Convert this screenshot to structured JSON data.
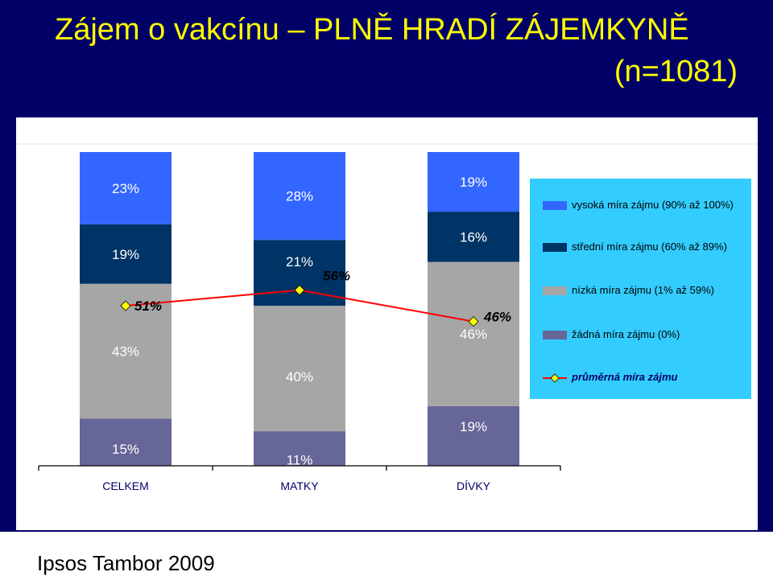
{
  "title": {
    "line1": "Zájem o vakcínu – PLNĚ HRADÍ ZÁJEMKYNĚ",
    "line2": "(n=1081)"
  },
  "footer": {
    "source": "Ipsos Tambor 2009"
  },
  "colors": {
    "vysoka": "#3366FF",
    "stredni": "#003366",
    "nizka": "#A6A6A6",
    "zadna": "#666699",
    "line": "#FF0000",
    "marker": "#FFFF00"
  },
  "chart_data": {
    "type": "bar",
    "stacked": true,
    "categories": [
      "CELKEM",
      "MATKY",
      "DÍVKY"
    ],
    "series": [
      {
        "name": "žádná míra zájmu (0%)",
        "values": [
          15,
          11,
          19
        ],
        "labels": [
          "15%",
          "11%",
          "19%"
        ]
      },
      {
        "name": "nízká míra zájmu (1% až 59%)",
        "values": [
          43,
          40,
          46
        ],
        "labels": [
          "43%",
          "40%",
          "46%"
        ]
      },
      {
        "name": "střední míra zájmu (60% až 89%)",
        "values": [
          19,
          21,
          16
        ],
        "labels": [
          "19%",
          "21%",
          "16%"
        ]
      },
      {
        "name": "vysoká míra zájmu (90% až 100%)",
        "values": [
          23,
          28,
          19
        ],
        "labels": [
          "23%",
          "28%",
          "19%"
        ]
      }
    ],
    "line_series": {
      "name": "průměrná míra zájmu",
      "values": [
        51,
        56,
        46
      ],
      "labels": [
        "51%",
        "56%",
        "46%"
      ]
    },
    "ylim": [
      0,
      100
    ],
    "legend_position": "right"
  }
}
